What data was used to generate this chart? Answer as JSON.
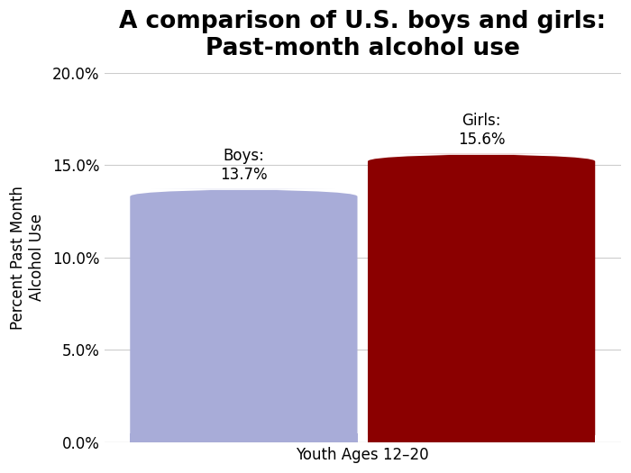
{
  "categories": [
    "Boys",
    "Girls"
  ],
  "values": [
    13.7,
    15.6
  ],
  "bar_colors": [
    "#a8acd8",
    "#8b0000"
  ],
  "bar_labels": [
    "Boys:\n13.7%",
    "Girls:\n15.6%"
  ],
  "title_line1": "A comparison of U.S. boys and girls:",
  "title_line2": "Past-month alcohol use",
  "xlabel": "Youth Ages 12–20",
  "ylabel": "Percent Past Month\nAlcohol Use",
  "ylim": [
    0,
    20
  ],
  "yticks": [
    0,
    5,
    10,
    15,
    20
  ],
  "ytick_labels": [
    "0.0%",
    "5.0%",
    "10.0%",
    "15.0%",
    "20.0%"
  ],
  "background_color": "#ffffff",
  "title_fontsize": 19,
  "label_fontsize": 12,
  "axis_fontsize": 11,
  "tick_label_fontsize": 12
}
